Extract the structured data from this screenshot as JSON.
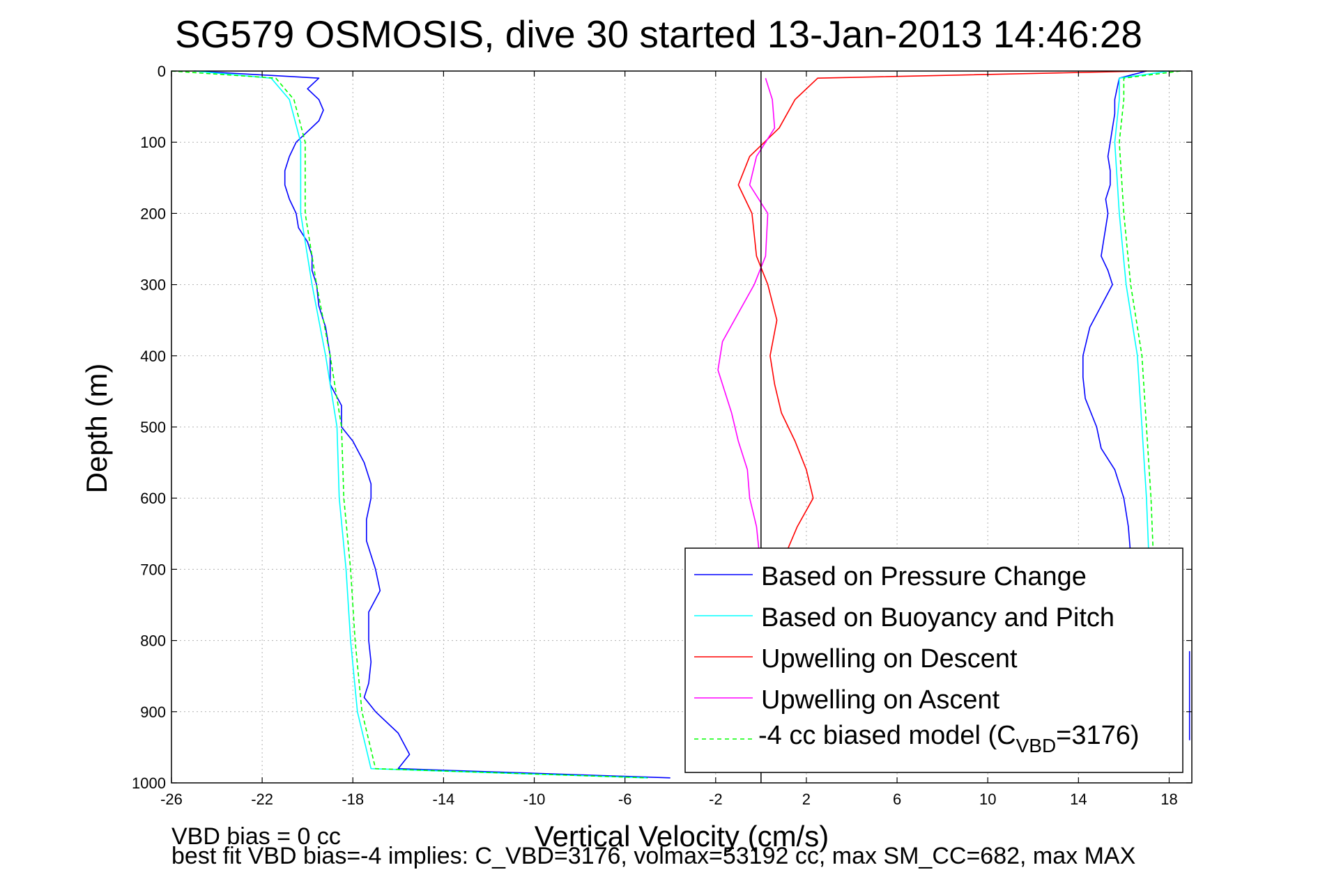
{
  "chart_data": {
    "type": "line",
    "title": "SG579 OSMOSIS, dive 30 started 13-Jan-2013 14:46:28",
    "xlabel": "Vertical Velocity (cm/s)",
    "ylabel": "Depth (m)",
    "xlim": [
      -26,
      19
    ],
    "ylim": [
      1000,
      0
    ],
    "y_reversed": true,
    "grid": true,
    "xticks": [
      -26,
      -22,
      -18,
      -14,
      -10,
      -6,
      -2,
      2,
      6,
      10,
      14,
      18
    ],
    "yticks": [
      0,
      100,
      200,
      300,
      400,
      500,
      600,
      700,
      800,
      900,
      1000
    ],
    "legend_position": "bottom-right",
    "series": [
      {
        "name": "Based on Pressure Change",
        "color": "#0000ff",
        "style": "solid",
        "segments": [
          {
            "depth": [
              0,
              10,
              25,
              40,
              55,
              70,
              85,
              100,
              120,
              140,
              160,
              180,
              200,
              220,
              240,
              260,
              280,
              300,
              330,
              360,
              400,
              440,
              470,
              500,
              520,
              550,
              580,
              600,
              630,
              660,
              700,
              730,
              760,
              800,
              830,
              860,
              880,
              900,
              930,
              960,
              980,
              993
            ],
            "velocity": [
              -25,
              -19.5,
              -20,
              -19.5,
              -19.3,
              -19.5,
              -20,
              -20.5,
              -20.8,
              -21,
              -21,
              -20.8,
              -20.5,
              -20.4,
              -20,
              -19.8,
              -19.8,
              -19.6,
              -19.5,
              -19.2,
              -19,
              -19,
              -18.5,
              -18.5,
              -18,
              -17.5,
              -17.2,
              -17.2,
              -17.4,
              -17.4,
              -17,
              -16.8,
              -17.3,
              -17.3,
              -17.2,
              -17.3,
              -17.5,
              -17,
              -16,
              -15.5,
              -16,
              -4
            ]
          },
          {
            "depth": [
              0,
              10,
              25,
              40,
              60,
              80,
              100,
              120,
              140,
              160,
              180,
              200,
              220,
              240,
              260,
              280,
              300,
              330,
              360,
              400,
              430,
              460,
              500,
              530,
              560,
              600,
              640,
              680
            ],
            "velocity": [
              17,
              15.8,
              15.7,
              15.6,
              15.6,
              15.5,
              15.4,
              15.3,
              15.4,
              15.4,
              15.2,
              15.3,
              15.2,
              15.1,
              15,
              15.3,
              15.5,
              15,
              14.5,
              14.2,
              14.2,
              14.3,
              14.8,
              15,
              15.6,
              16,
              16.2,
              16.3
            ]
          },
          {
            "depth": [
              815,
              940
            ],
            "velocity": [
              18.9,
              18.9
            ]
          }
        ]
      },
      {
        "name": "Based on Buoyancy and Pitch",
        "color": "#00ffff",
        "style": "solid",
        "segments": [
          {
            "depth": [
              0,
              10,
              40,
              100,
              200,
              300,
              400,
              500,
              600,
              700,
              800,
              900,
              980,
              993
            ],
            "velocity": [
              -25,
              -21.6,
              -20.8,
              -20.3,
              -20.3,
              -19.8,
              -19.2,
              -18.7,
              -18.6,
              -18.3,
              -18.1,
              -17.8,
              -17.2,
              -5
            ]
          },
          {
            "depth": [
              0,
              10,
              40,
              100,
              200,
              300,
              400,
              500,
              600,
              680
            ],
            "velocity": [
              18,
              15.8,
              15.8,
              15.6,
              15.8,
              16.1,
              16.6,
              16.8,
              17,
              17.1
            ]
          }
        ]
      },
      {
        "name": "Upwelling on Descent",
        "color": "#ff0000",
        "style": "solid",
        "segments": [
          {
            "depth": [
              0,
              10,
              40,
              80,
              120,
              160,
              200,
              260,
              300,
              350,
              400,
              440,
              480,
              520,
              560,
              600,
              640,
              670
            ],
            "velocity": [
              17,
              2.5,
              1.5,
              0.8,
              -0.5,
              -1,
              -0.4,
              -0.2,
              0.3,
              0.7,
              0.4,
              0.6,
              0.9,
              1.5,
              2,
              2.3,
              1.6,
              1.2
            ]
          }
        ]
      },
      {
        "name": "Upwelling on Ascent",
        "color": "#ff00ff",
        "style": "solid",
        "segments": [
          {
            "depth": [
              10,
              40,
              80,
              120,
              160,
              200,
              260,
              300,
              340,
              380,
              420,
              450,
              480,
              520,
              560,
              600,
              640,
              670
            ],
            "velocity": [
              0.2,
              0.5,
              0.6,
              -0.2,
              -0.5,
              0.3,
              0.2,
              -0.3,
              -1,
              -1.7,
              -1.9,
              -1.6,
              -1.3,
              -1,
              -0.6,
              -0.5,
              -0.2,
              -0.1
            ]
          }
        ]
      },
      {
        "name": "-4 cc biased model (C_VBD=3176)",
        "color": "#00ff00",
        "style": "dashed",
        "segments": [
          {
            "depth": [
              0,
              10,
              40,
              100,
              200,
              300,
              400,
              500,
              600,
              700,
              800,
              900,
              980,
              993
            ],
            "velocity": [
              -26,
              -21.4,
              -20.6,
              -20.1,
              -20.1,
              -19.6,
              -19,
              -18.5,
              -18.4,
              -18.1,
              -17.9,
              -17.6,
              -17,
              -5
            ]
          },
          {
            "depth": [
              0,
              10,
              40,
              100,
              200,
              300,
              400,
              500,
              600,
              680
            ],
            "velocity": [
              18.5,
              16,
              16,
              15.8,
              16,
              16.3,
              16.8,
              17,
              17.2,
              17.3
            ]
          }
        ]
      }
    ]
  },
  "legend": {
    "items": [
      "Based on Pressure Change",
      "Based on Buoyancy and Pitch",
      "Upwelling on Descent",
      "Upwelling on Ascent"
    ],
    "model_label_pre": "-4 cc biased model (C",
    "model_label_sub": "VBD",
    "model_label_post": "=3176)"
  },
  "footer": {
    "line1": "VBD bias = 0 cc",
    "line2": "best fit VBD bias=-4 implies: C_VBD=3176, volmax=53192 cc, max SM_CC=682, max MAX"
  }
}
